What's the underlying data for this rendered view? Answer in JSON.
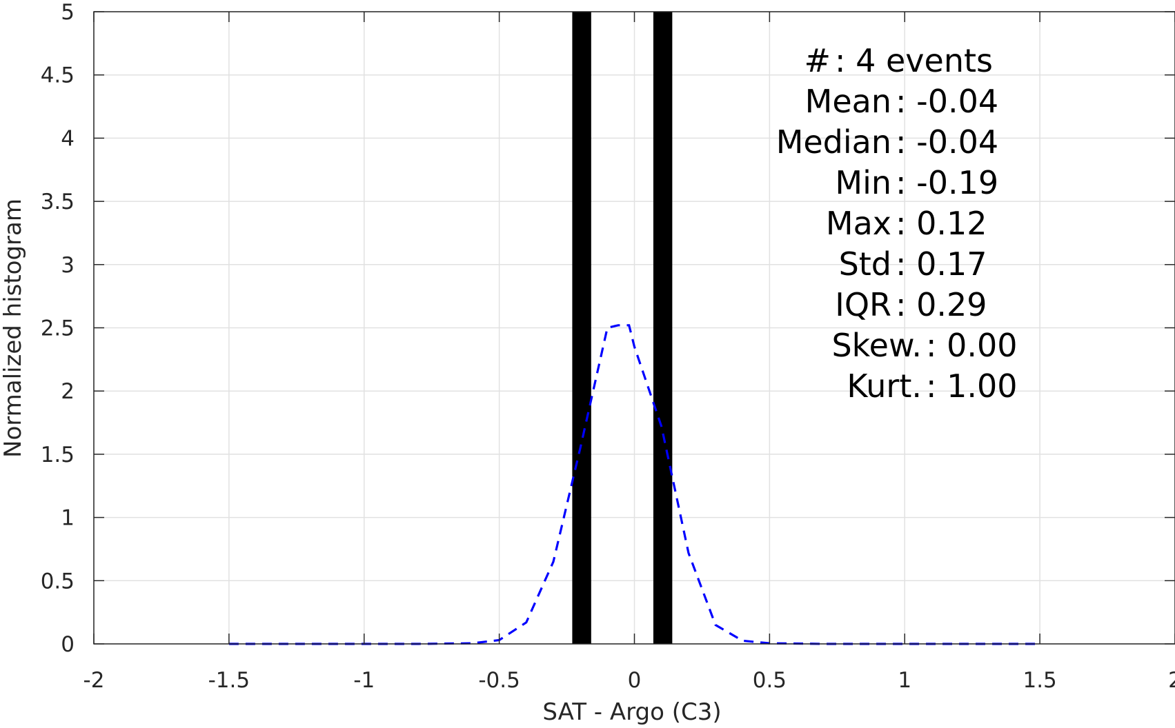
{
  "chart_data": {
    "type": "bar",
    "xlabel": "SAT - Argo (C3)",
    "ylabel": "Normalized histogram",
    "xlim": [
      -2,
      2
    ],
    "ylim": [
      0,
      5
    ],
    "grid": true,
    "x_ticks": [
      -2,
      -1.5,
      -1,
      -0.5,
      0,
      0.5,
      1,
      1.5,
      2
    ],
    "x_tick_labels": [
      "-2",
      "-1.5",
      "-1",
      "-0.5",
      "0",
      "0.5",
      "1",
      "1.5",
      "2"
    ],
    "y_ticks": [
      0,
      0.5,
      1,
      1.5,
      2,
      2.5,
      3,
      3.5,
      4,
      4.5,
      5
    ],
    "y_tick_labels": [
      "0",
      "0.5",
      "1",
      "1.5",
      "2",
      "2.5",
      "3",
      "3.5",
      "4",
      "4.5",
      "5"
    ],
    "bars": [
      {
        "x_start": -0.23,
        "x_end": -0.16,
        "value": 5
      },
      {
        "x_start": 0.07,
        "x_end": 0.14,
        "value": 5
      }
    ],
    "bar_color": "#000000",
    "fit_curve": {
      "style": "dashed",
      "color": "#0000ff",
      "x": [
        -1.5,
        -1.2,
        -1.0,
        -0.8,
        -0.6,
        -0.5,
        -0.4,
        -0.3,
        -0.2,
        -0.1,
        -0.06,
        -0.02,
        0.0,
        0.1,
        0.2,
        0.3,
        0.4,
        0.5,
        0.7,
        1.0,
        1.2,
        1.5
      ],
      "y": [
        0,
        0,
        0,
        0,
        0.005,
        0.03,
        0.17,
        0.65,
        1.55,
        2.5,
        2.52,
        2.52,
        2.35,
        1.72,
        0.72,
        0.15,
        0.025,
        0.005,
        0,
        0,
        0,
        0
      ]
    },
    "annotations": [
      {
        "label": "#  ",
        "value": ": 4 events"
      },
      {
        "label": "Mean",
        "value": ": -0.04"
      },
      {
        "label": "Median",
        "value": ": -0.04"
      },
      {
        "label": "Min",
        "value": ": -0.19"
      },
      {
        "label": "Max",
        "value": ": 0.12"
      },
      {
        "label": "Std",
        "value": ": 0.17"
      },
      {
        "label": "IQR",
        "value": ": 0.29"
      },
      {
        "label": "Skew.",
        "value": ": 0.00"
      },
      {
        "label": "Kurt.",
        "value": ": 1.00"
      }
    ]
  }
}
